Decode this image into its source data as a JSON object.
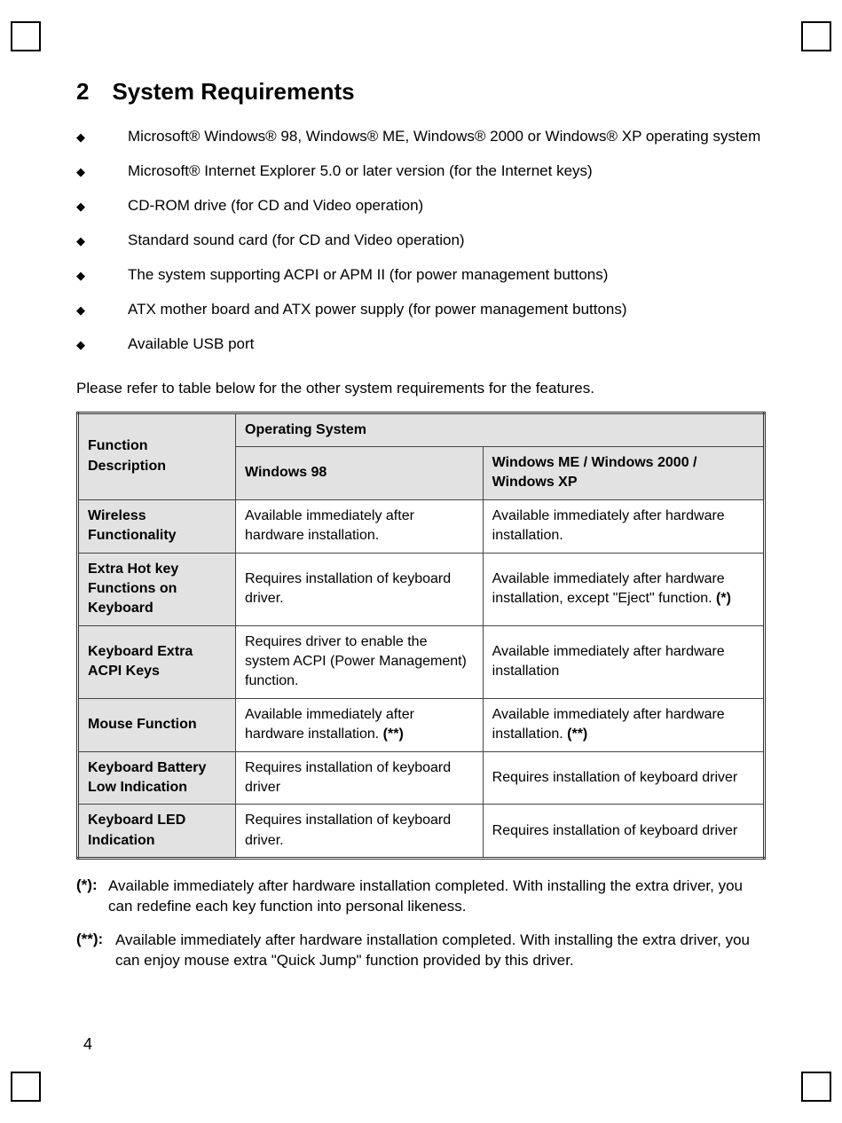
{
  "section": {
    "number": "2",
    "title": "System Requirements"
  },
  "requirements": [
    "Microsoft® Windows® 98, Windows® ME, Windows® 2000 or Windows® XP operating system",
    "Microsoft® Internet Explorer 5.0 or later version (for the Internet keys)",
    "CD-ROM drive (for CD and Video operation)",
    "Standard sound card (for CD and Video operation)",
    "The system supporting ACPI or APM II (for power management buttons)",
    "ATX mother board and ATX power supply (for power management buttons)",
    "Available USB port"
  ],
  "intro": "Please refer to table below for the other system requirements for the features.",
  "table": {
    "header": {
      "func": "Function Description",
      "os": "Operating System",
      "c2": "Windows 98",
      "c3": "Windows ME / Windows 2000 / Windows XP"
    },
    "rows": [
      {
        "f": "Wireless Functionality",
        "a": "Available immediately after hardware installation.",
        "b": "Available immediately after hardware installation."
      },
      {
        "f": "Extra Hot key Functions on Keyboard",
        "a": "Requires installation of keyboard driver.",
        "b": "Available immediately after hardware installation, except \"Eject\" function. (*)",
        "b_bold_suffix": "(*)"
      },
      {
        "f": "Keyboard Extra ACPI Keys",
        "a": "Requires driver to enable the system ACPI (Power Management) function.",
        "b": "Available immediately after hardware installation"
      },
      {
        "f": "Mouse Function",
        "a": "Available immediately after hardware installation. (**)",
        "a_bold_suffix": "(**)",
        "b": "Available immediately after hardware installation. (**)",
        "b_bold_suffix": "(**)"
      },
      {
        "f": "Keyboard Battery Low Indication",
        "a": "Requires installation of keyboard driver",
        "b": "Requires installation of keyboard driver"
      },
      {
        "f": "Keyboard LED Indication",
        "a": "Requires installation of keyboard driver.",
        "b": "Requires installation of keyboard driver"
      }
    ]
  },
  "notes": [
    {
      "label": "(*):",
      "text": "Available immediately after hardware installation completed. With installing the extra driver, you can redefine each key function into personal likeness."
    },
    {
      "label": "(**):",
      "text": "Available immediately after hardware installation completed. With installing the extra driver, you can enjoy mouse extra \"Quick Jump\" function provided by this driver."
    }
  ],
  "pagenum": "4",
  "bullet_glyph": "◆"
}
